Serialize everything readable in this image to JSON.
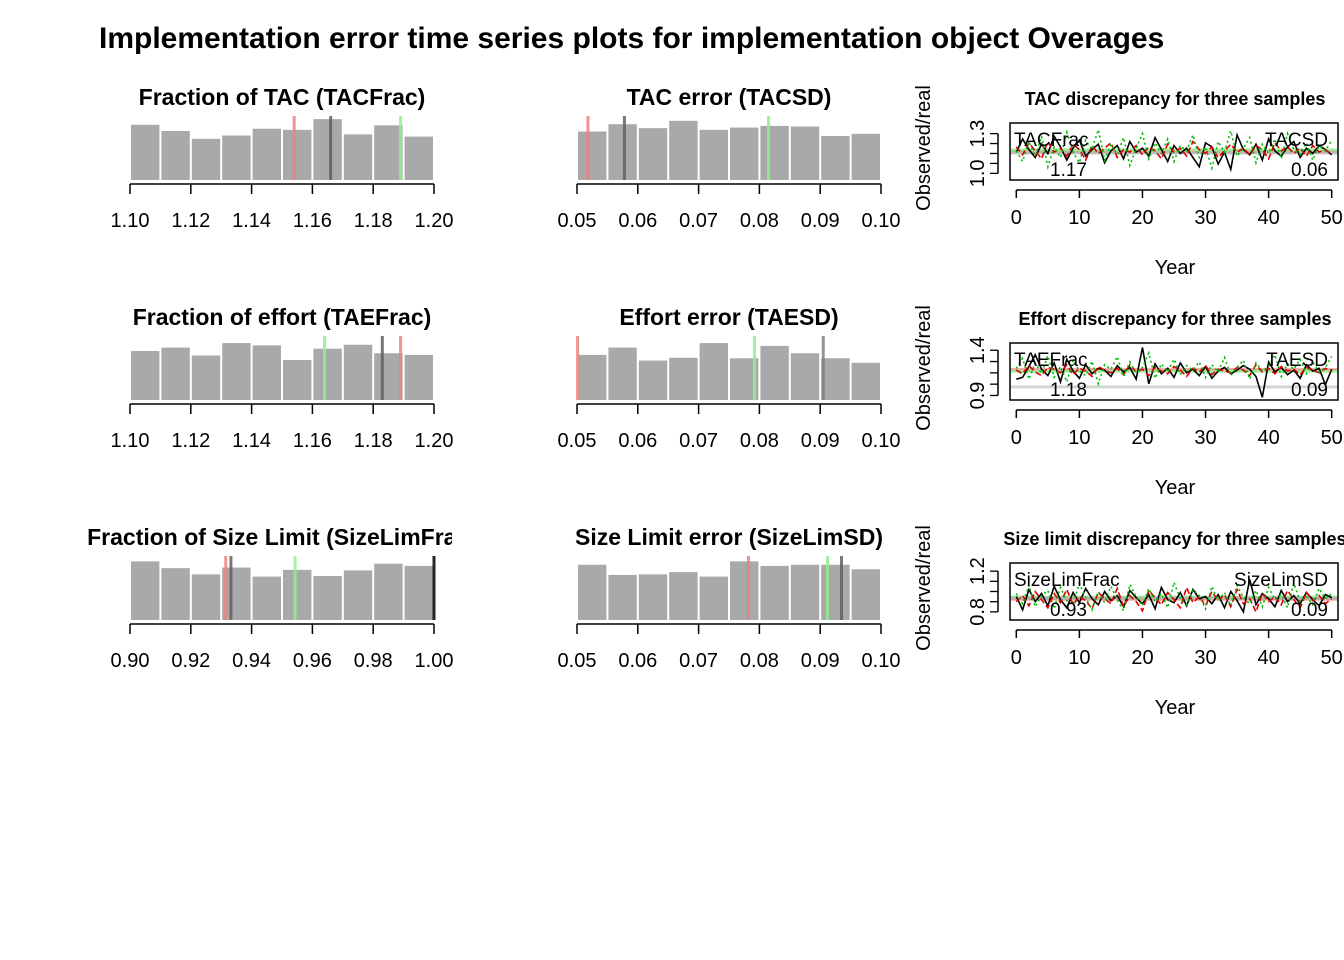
{
  "title": "Implementation error time series plots for implementation object Overages",
  "chart_data": [
    {
      "type": "bar",
      "title": "Fraction of TAC (TACFrac)",
      "xlim": [
        1.1,
        1.2
      ],
      "xticks": [
        "1.10",
        "1.12",
        "1.14",
        "1.16",
        "1.18",
        "1.20"
      ],
      "bins": [
        1.1,
        1.11,
        1.12,
        1.13,
        1.14,
        1.15,
        1.16,
        1.17,
        1.18,
        1.19,
        1.2
      ],
      "counts": [
        0.98,
        0.87,
        0.73,
        0.79,
        0.91,
        0.89,
        1.08,
        0.81,
        0.97,
        0.77
      ],
      "vlines": [
        {
          "x": 1.154,
          "color": "#f08080"
        },
        {
          "x": 1.166,
          "color": "#606060"
        },
        {
          "x": 1.189,
          "color": "#90ee90"
        }
      ]
    },
    {
      "type": "bar",
      "title": "TAC error (TACSD)",
      "xlim": [
        0.05,
        0.1
      ],
      "xticks": [
        "0.05",
        "0.06",
        "0.07",
        "0.08",
        "0.09",
        "0.10"
      ],
      "bins": [
        0.05,
        0.055,
        0.06,
        0.065,
        0.07,
        0.075,
        0.08,
        0.085,
        0.09,
        0.095,
        0.1
      ],
      "counts": [
        0.86,
        0.99,
        0.92,
        1.05,
        0.89,
        0.93,
        0.96,
        0.95,
        0.78,
        0.82
      ],
      "vlines": [
        {
          "x": 0.0518,
          "color": "#f08080"
        },
        {
          "x": 0.0578,
          "color": "#606060"
        },
        {
          "x": 0.0815,
          "color": "#90ee90"
        }
      ]
    },
    {
      "type": "line",
      "title": "TAC discrepancy for three samples",
      "xlabel": "Year",
      "ylabel": "Observed/real",
      "xticks": [
        0,
        10,
        20,
        30,
        40,
        50
      ],
      "yticks": [
        "1.0",
        "1.3"
      ],
      "yvals": [
        1.0,
        1.3
      ],
      "xlim": [
        -1,
        51
      ],
      "ylim": [
        0.95,
        1.38
      ],
      "left_label": "TACFrac",
      "right_label": "TACSD",
      "left_value": "1.17",
      "right_value": "0.06",
      "hlines": [
        {
          "y": 1.168,
          "color": "#f08080"
        },
        {
          "y": 1.176,
          "color": "#90ee90"
        },
        {
          "y": 1.155,
          "color": "#b0b0b0"
        }
      ],
      "series": [
        {
          "color": "#000000",
          "dash": "",
          "values": [
            1.16,
            1.26,
            1.18,
            1.12,
            1.22,
            1.15,
            1.28,
            1.2,
            1.1,
            1.19,
            1.25,
            1.13,
            1.18,
            1.22,
            1.08,
            1.17,
            1.21,
            1.11,
            1.24,
            1.16,
            1.19,
            1.13,
            1.27,
            1.18,
            1.09,
            1.21,
            1.15,
            1.19,
            1.12,
            1.05,
            1.23,
            1.2,
            1.07,
            1.16,
            1.03,
            1.29,
            1.18,
            1.14,
            1.22,
            1.1,
            1.26,
            1.17,
            1.13,
            1.2,
            1.24,
            1.12,
            1.19,
            1.15,
            1.21,
            1.18,
            1.14
          ]
        },
        {
          "color": "#dd0000",
          "dash": "6,3",
          "values": [
            1.2,
            1.14,
            1.23,
            1.17,
            1.11,
            1.24,
            1.16,
            1.19,
            1.13,
            1.22,
            1.18,
            1.1,
            1.21,
            1.15,
            1.19,
            1.23,
            1.12,
            1.18,
            1.16,
            1.21,
            1.14,
            1.2,
            1.17,
            1.11,
            1.22,
            1.16,
            1.19,
            1.13,
            1.24,
            1.18,
            1.15,
            1.2,
            1.12,
            1.17,
            1.22,
            1.16,
            1.19,
            1.14,
            1.21,
            1.18,
            1.11,
            1.23,
            1.17,
            1.2,
            1.15,
            1.19,
            1.13,
            1.21,
            1.16,
            1.18,
            1.14
          ]
        },
        {
          "color": "#00bb00",
          "dash": "2,3",
          "values": [
            1.17,
            1.09,
            1.24,
            1.13,
            1.28,
            1.05,
            1.2,
            1.12,
            1.31,
            1.16,
            1.08,
            1.25,
            1.18,
            1.33,
            1.1,
            1.22,
            1.14,
            1.27,
            1.06,
            1.19,
            1.3,
            1.11,
            1.23,
            1.15,
            1.26,
            1.09,
            1.21,
            1.17,
            1.29,
            1.12,
            1.2,
            1.04,
            1.24,
            1.16,
            1.32,
            1.13,
            1.19,
            1.27,
            1.08,
            1.22,
            1.15,
            1.26,
            1.11,
            1.3,
            1.18,
            1.14,
            1.23,
            1.1,
            1.21,
            1.17,
            1.25
          ]
        }
      ]
    },
    {
      "type": "bar",
      "title": "Fraction of effort (TAEFrac)",
      "xlim": [
        1.1,
        1.2
      ],
      "xticks": [
        "1.10",
        "1.12",
        "1.14",
        "1.16",
        "1.18",
        "1.20"
      ],
      "bins": [
        1.1,
        1.11,
        1.12,
        1.13,
        1.14,
        1.15,
        1.16,
        1.17,
        1.18,
        1.19,
        1.2
      ],
      "counts": [
        0.87,
        0.93,
        0.79,
        1.01,
        0.97,
        0.71,
        0.91,
        0.98,
        0.83,
        0.8
      ],
      "vlines": [
        {
          "x": 1.164,
          "color": "#90ee90"
        },
        {
          "x": 1.183,
          "color": "#606060"
        },
        {
          "x": 1.189,
          "color": "#f08080"
        }
      ]
    },
    {
      "type": "bar",
      "title": "Effort error (TAESD)",
      "xlim": [
        0.05,
        0.1
      ],
      "xticks": [
        "0.05",
        "0.06",
        "0.07",
        "0.08",
        "0.09",
        "0.10"
      ],
      "bins": [
        0.05,
        0.055,
        0.06,
        0.065,
        0.07,
        0.075,
        0.08,
        0.085,
        0.09,
        0.095,
        0.1
      ],
      "counts": [
        0.8,
        0.93,
        0.7,
        0.75,
        1.01,
        0.74,
        0.96,
        0.83,
        0.74,
        0.66
      ],
      "vlines": [
        {
          "x": 0.0501,
          "color": "#f08080"
        },
        {
          "x": 0.0792,
          "color": "#90ee90"
        },
        {
          "x": 0.0905,
          "color": "#808080"
        }
      ]
    },
    {
      "type": "line",
      "title": "Effort discrepancy for three samples",
      "xlabel": "Year",
      "ylabel": "Observed/real",
      "xticks": [
        0,
        10,
        20,
        30,
        40,
        50
      ],
      "yticks": [
        "0.9",
        "1.4"
      ],
      "yvals": [
        0.9,
        1.4
      ],
      "xlim": [
        -1,
        51
      ],
      "ylim": [
        0.85,
        1.48
      ],
      "left_label": "TAEFrac",
      "right_label": "TAESD",
      "left_value": "1.18",
      "right_value": "0.09",
      "hlines": [
        {
          "y": 1.185,
          "color": "#f08080"
        },
        {
          "y": 1.168,
          "color": "#90ee90"
        },
        {
          "y": 0.995,
          "color": "#c8c8c8"
        }
      ],
      "series": [
        {
          "color": "#000000",
          "dash": "",
          "values": [
            1.08,
            1.1,
            1.22,
            1.35,
            1.19,
            1.12,
            1.26,
            1.05,
            1.3,
            1.17,
            1.09,
            1.24,
            1.14,
            1.2,
            1.18,
            1.11,
            1.23,
            1.16,
            1.21,
            1.08,
            1.43,
            1.03,
            1.25,
            1.14,
            1.2,
            1.1,
            1.26,
            1.15,
            1.19,
            1.12,
            1.22,
            1.09,
            1.17,
            1.21,
            1.14,
            1.18,
            1.23,
            1.19,
            1.11,
            0.88,
            1.27,
            1.16,
            1.21,
            1.13,
            1.18,
            1.09,
            1.24,
            1.17,
            1.2,
            1.02,
            1.19
          ]
        },
        {
          "color": "#dd0000",
          "dash": "6,3",
          "values": [
            1.18,
            1.14,
            1.23,
            1.16,
            1.12,
            1.21,
            1.19,
            1.15,
            1.24,
            1.13,
            1.2,
            1.17,
            1.11,
            1.22,
            1.18,
            1.15,
            1.2,
            1.13,
            1.24,
            1.16,
            1.19,
            1.12,
            1.21,
            1.17,
            1.14,
            1.22,
            1.18,
            1.11,
            1.2,
            1.16,
            1.23,
            1.13,
            1.19,
            1.17,
            1.15,
            1.21,
            1.18,
            1.12,
            1.24,
            1.16,
            1.2,
            1.14,
            1.22,
            1.17,
            1.19,
            1.13,
            1.21,
            1.18,
            1.15,
            1.2,
            1.16
          ]
        },
        {
          "color": "#00bb00",
          "dash": "2,3",
          "values": [
            1.2,
            1.31,
            1.08,
            1.26,
            1.14,
            1.34,
            1.1,
            1.22,
            1.05,
            1.29,
            1.17,
            1.12,
            1.28,
            1.03,
            1.24,
            1.19,
            1.33,
            1.11,
            1.27,
            1.15,
            1.21,
            1.37,
            1.09,
            1.25,
            1.16,
            1.3,
            1.13,
            1.23,
            1.18,
            1.27,
            1.1,
            1.24,
            1.16,
            1.32,
            1.12,
            1.21,
            1.29,
            1.08,
            1.26,
            1.17,
            1.22,
            1.35,
            1.11,
            1.25,
            1.19,
            1.3,
            1.14,
            1.27,
            1.16,
            1.21,
            1.33
          ]
        }
      ]
    },
    {
      "type": "bar",
      "title": "Fraction of Size Limit (SizeLimFrac)",
      "xlim": [
        0.9,
        1.0
      ],
      "xticks": [
        "0.90",
        "0.92",
        "0.94",
        "0.96",
        "0.98",
        "1.00"
      ],
      "bins": [
        0.9,
        0.91,
        0.92,
        0.93,
        0.94,
        0.95,
        0.96,
        0.97,
        0.98,
        0.99,
        1.0
      ],
      "counts": [
        1.04,
        0.92,
        0.81,
        0.93,
        0.77,
        0.89,
        0.78,
        0.88,
        1.0,
        0.96
      ],
      "vlines": [
        {
          "x": 0.9315,
          "color": "#f08080"
        },
        {
          "x": 0.9332,
          "color": "#606060"
        },
        {
          "x": 0.9543,
          "color": "#90ee90"
        },
        {
          "x": 1.0,
          "color": "#000000"
        }
      ]
    },
    {
      "type": "bar",
      "title": "Size Limit error (SizeLimSD)",
      "xlim": [
        0.05,
        0.1
      ],
      "xticks": [
        "0.05",
        "0.06",
        "0.07",
        "0.08",
        "0.09",
        "0.10"
      ],
      "bins": [
        0.05,
        0.055,
        0.06,
        0.065,
        0.07,
        0.075,
        0.08,
        0.085,
        0.09,
        0.095,
        0.1
      ],
      "counts": [
        0.98,
        0.8,
        0.81,
        0.85,
        0.77,
        1.04,
        0.96,
        0.98,
        0.98,
        0.9
      ],
      "vlines": [
        {
          "x": 0.0782,
          "color": "#f08080"
        },
        {
          "x": 0.0912,
          "color": "#90ee90"
        },
        {
          "x": 0.0935,
          "color": "#606060"
        }
      ]
    },
    {
      "type": "line",
      "title": "Size limit discrepancy for three samples",
      "xlabel": "Year",
      "ylabel": "Observed/real",
      "xticks": [
        0,
        10,
        20,
        30,
        40,
        50
      ],
      "yticks": [
        "0.8",
        "1.2"
      ],
      "yvals": [
        0.8,
        1.2
      ],
      "xlim": [
        -1,
        51
      ],
      "ylim": [
        0.72,
        1.28
      ],
      "left_label": "SizeLimFrac",
      "right_label": "SizeLimSD",
      "left_value": "0.93",
      "right_value": "0.09",
      "hlines": [
        {
          "y": 0.925,
          "color": "#f08080"
        },
        {
          "y": 0.945,
          "color": "#90ee90"
        },
        {
          "y": 0.935,
          "color": "#b0b0b0"
        }
      ],
      "series": [
        {
          "color": "#000000",
          "dash": "",
          "values": [
            0.95,
            0.82,
            1.02,
            0.9,
            0.98,
            0.86,
            1.05,
            0.92,
            0.84,
            0.99,
            0.89,
            1.03,
            0.93,
            0.87,
            1.0,
            0.91,
            0.96,
            0.85,
            1.01,
            0.94,
            0.88,
            0.97,
            0.83,
            1.04,
            0.92,
            0.89,
            0.99,
            0.86,
            1.02,
            0.93,
            0.95,
            0.88,
            0.97,
            0.84,
            1.0,
            0.91,
            0.8,
            1.12,
            0.87,
            0.98,
            0.93,
            0.85,
            1.01,
            0.9,
            0.96,
            0.88,
            0.99,
            0.92,
            0.86,
            0.97,
            0.94
          ]
        },
        {
          "color": "#dd0000",
          "dash": "6,3",
          "values": [
            0.9,
            0.96,
            0.86,
            1.0,
            0.92,
            0.84,
            0.98,
            0.89,
            1.02,
            0.87,
            0.95,
            0.91,
            0.83,
            0.99,
            0.93,
            0.88,
            1.03,
            0.85,
            0.96,
            0.9,
            0.81,
            1.01,
            0.94,
            0.87,
            0.99,
            0.92,
            0.84,
            1.04,
            0.89,
            0.95,
            0.86,
            1.0,
            0.91,
            0.97,
            0.85,
            1.02,
            0.88,
            0.93,
            0.8,
            0.98,
            0.9,
            0.95,
            0.87,
            1.01,
            0.92,
            0.84,
            0.99,
            0.91,
            0.96,
            0.88,
            0.93
          ]
        },
        {
          "color": "#00bb00",
          "dash": "2,3",
          "values": [
            0.98,
            0.88,
            1.06,
            0.85,
            0.96,
            1.01,
            0.83,
            1.04,
            0.91,
            0.87,
            1.08,
            0.94,
            0.82,
            1.0,
            0.89,
            1.05,
            0.92,
            0.81,
            1.07,
            0.95,
            0.86,
            1.03,
            0.9,
            0.98,
            0.84,
            1.09,
            0.93,
            0.87,
            1.02,
            0.96,
            0.83,
            1.05,
            0.91,
            0.99,
            0.86,
            1.06,
            0.94,
            0.88,
            1.01,
            0.85,
            1.04,
            0.92,
            0.97,
            0.84,
            1.08,
            0.9,
            0.95,
            0.87,
            1.03,
            0.93,
            0.98
          ]
        }
      ]
    }
  ]
}
